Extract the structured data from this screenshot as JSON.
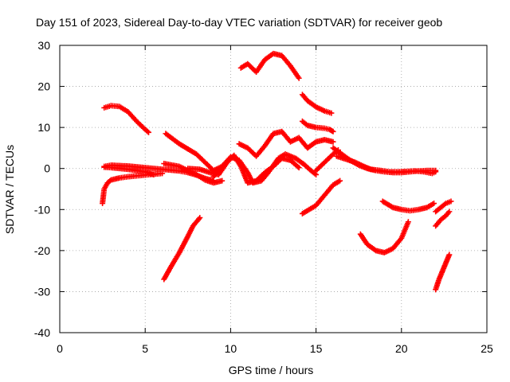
{
  "chart_data": {
    "type": "scatter",
    "title": "Day 151 of 2023, Sidereal Day-to-day VTEC variation (SDTVAR) for receiver geob",
    "xlabel": "GPS time / hours",
    "ylabel": "SDTVAR / TECUs",
    "xlim": [
      0,
      25
    ],
    "ylim": [
      -40,
      30
    ],
    "xticks": [
      "0",
      "5",
      "10",
      "15",
      "20",
      "25"
    ],
    "yticks": [
      "-40",
      "-30",
      "-20",
      "-10",
      "0",
      "10",
      "20",
      "30"
    ],
    "grid": true,
    "marker": "+",
    "color": "#ff0000",
    "segments": [
      {
        "x": [
          2.6,
          3.0,
          3.5,
          4.0,
          4.5,
          5.0,
          5.2
        ],
        "y": [
          14.8,
          15.3,
          15.1,
          13.8,
          11.5,
          9.5,
          8.8
        ]
      },
      {
        "x": [
          2.5,
          2.6,
          2.8,
          3.0,
          3.5,
          4.0,
          4.5,
          5.0,
          5.5,
          6.0
        ],
        "y": [
          -8.5,
          -5.0,
          -3.5,
          -2.8,
          -2.3,
          -2.0,
          -1.8,
          -1.6,
          -1.4,
          -1.2
        ]
      },
      {
        "x": [
          2.6,
          3.0,
          4.0,
          5.0,
          6.0,
          7.0,
          7.5,
          8.0,
          8.5,
          9.0
        ],
        "y": [
          0.5,
          0.8,
          0.6,
          0.2,
          -0.2,
          -0.6,
          -1.0,
          -1.6,
          -2.4,
          -3.0
        ]
      },
      {
        "x": [
          2.6,
          3.0,
          4.0,
          5.0,
          5.5
        ],
        "y": [
          0.3,
          0.2,
          -0.2,
          -0.8,
          -1.5
        ]
      },
      {
        "x": [
          6.2,
          7.0,
          7.6,
          8.0,
          8.5,
          9.0,
          9.5,
          10.0
        ],
        "y": [
          8.5,
          6.0,
          4.5,
          3.5,
          1.5,
          -0.5,
          0.5,
          2.5
        ]
      },
      {
        "x": [
          6.1,
          6.5,
          7.0,
          7.5,
          7.8,
          8.2
        ],
        "y": [
          -27.0,
          -24.0,
          -20.5,
          -16.5,
          -14.0,
          -12.0
        ]
      },
      {
        "x": [
          6.1,
          7.0,
          7.5,
          8.0,
          8.5,
          9.0,
          9.5
        ],
        "y": [
          1.2,
          0.5,
          -0.5,
          -1.5,
          -2.8,
          -3.5,
          -3.0
        ]
      },
      {
        "x": [
          7.5,
          8.2,
          8.8,
          9.3,
          9.8,
          10.2,
          10.6,
          11.0,
          11.5,
          12.0,
          12.5,
          13.0,
          13.5,
          14.0
        ],
        "y": [
          0.0,
          -0.2,
          -1.0,
          -1.5,
          1.5,
          3.2,
          0.5,
          -3.5,
          -3.0,
          -1.0,
          0.5,
          2.5,
          2.0,
          0.2
        ]
      },
      {
        "x": [
          9.0,
          9.5,
          10.0,
          10.5,
          11.0,
          11.3,
          11.8,
          12.2,
          12.8,
          13.2,
          13.8,
          14.3,
          14.7,
          15.0
        ],
        "y": [
          -2.0,
          0.5,
          2.8,
          2.0,
          -1.0,
          -3.5,
          -3.0,
          -1.0,
          2.5,
          3.5,
          2.5,
          1.0,
          -0.5,
          -1.5
        ]
      },
      {
        "x": [
          10.5,
          11.0,
          11.5,
          12.0,
          12.5,
          13.0,
          13.5,
          14.0,
          14.5,
          15.0,
          15.5,
          16.0
        ],
        "y": [
          6.0,
          5.0,
          3.0,
          5.5,
          8.5,
          9.0,
          6.5,
          7.5,
          5.0,
          6.5,
          7.0,
          6.5
        ]
      },
      {
        "x": [
          10.6,
          11.0,
          11.5,
          12.0,
          12.5,
          13.0,
          13.5,
          14.0
        ],
        "y": [
          24.5,
          25.5,
          23.5,
          26.5,
          28.0,
          27.5,
          25.0,
          22.0
        ]
      },
      {
        "x": [
          14.2,
          14.5,
          15.0,
          15.5,
          15.8,
          16.0
        ],
        "y": [
          11.5,
          10.5,
          10.0,
          9.8,
          9.5,
          9.0
        ]
      },
      {
        "x": [
          14.2,
          14.5,
          15.0,
          15.5,
          15.9
        ],
        "y": [
          18.0,
          16.5,
          15.0,
          14.0,
          13.5
        ]
      },
      {
        "x": [
          14.2,
          15.0,
          15.5,
          16.0,
          16.4
        ],
        "y": [
          -11.0,
          -9.0,
          -6.5,
          -4.0,
          -3.0
        ]
      },
      {
        "x": [
          15.0,
          15.5,
          16.0,
          16.3
        ],
        "y": [
          -0.5,
          1.5,
          3.5,
          4.5
        ]
      },
      {
        "x": [
          16.0,
          16.5,
          17.0,
          17.5,
          18.0,
          18.5,
          19.0,
          19.5,
          20.0,
          20.5,
          21.0,
          21.5,
          22.0
        ],
        "y": [
          5.0,
          3.5,
          2.0,
          0.8,
          0.0,
          -0.5,
          -0.8,
          -1.0,
          -1.0,
          -0.8,
          -0.6,
          -0.5,
          -0.5
        ]
      },
      {
        "x": [
          16.2,
          16.8,
          17.3,
          17.8,
          18.2,
          18.8,
          19.3,
          19.8,
          20.3,
          20.8,
          21.3,
          21.8,
          22.0
        ],
        "y": [
          3.0,
          2.2,
          1.5,
          0.5,
          -0.2,
          -0.5,
          -0.8,
          -0.8,
          -0.7,
          -0.6,
          -0.8,
          -1.2,
          -0.8
        ]
      },
      {
        "x": [
          17.6,
          18.0,
          18.5,
          19.0,
          19.5,
          20.0,
          20.4
        ],
        "y": [
          -16.0,
          -18.5,
          -20.0,
          -20.5,
          -19.5,
          -17.0,
          -13.0
        ]
      },
      {
        "x": [
          18.9,
          19.5,
          20.0,
          20.5,
          21.0,
          21.5,
          21.9
        ],
        "y": [
          -8.0,
          -9.5,
          -10.0,
          -10.3,
          -10.0,
          -9.5,
          -8.5
        ]
      },
      {
        "x": [
          22.0,
          22.3,
          22.6,
          22.9
        ],
        "y": [
          -10.5,
          -9.5,
          -8.5,
          -8.0
        ]
      },
      {
        "x": [
          22.0,
          22.3,
          22.6,
          22.8
        ],
        "y": [
          -14.0,
          -12.5,
          -11.5,
          -10.5
        ]
      },
      {
        "x": [
          22.0,
          22.2,
          22.4,
          22.6,
          22.8
        ],
        "y": [
          -29.5,
          -27.0,
          -25.0,
          -23.0,
          -21.0
        ]
      }
    ]
  }
}
